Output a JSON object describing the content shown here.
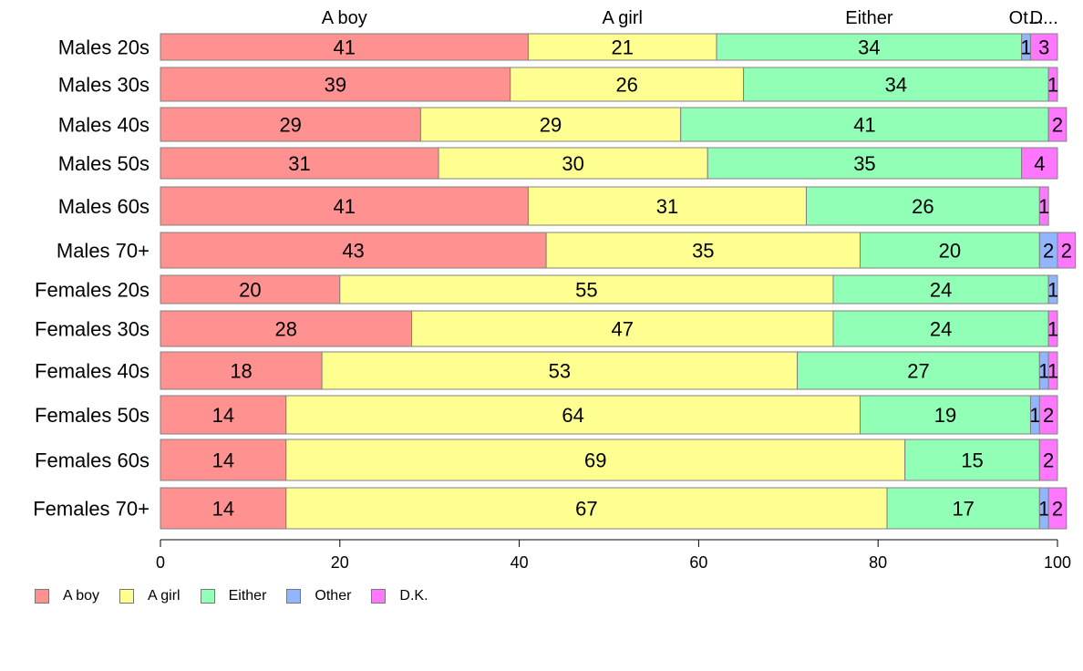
{
  "chart_data": {
    "type": "bar",
    "orientation": "horizontal",
    "stacked": true,
    "categories": [
      "Males 20s",
      "Males 30s",
      "Males 40s",
      "Males 50s",
      "Males 60s",
      "Males 70+",
      "Females 20s",
      "Females 30s",
      "Females 40s",
      "Females 50s",
      "Females 60s",
      "Females 70+"
    ],
    "series": [
      {
        "name": "A boy",
        "color": "#ff9191",
        "values": [
          41,
          39,
          29,
          31,
          41,
          43,
          20,
          28,
          18,
          14,
          14,
          14
        ]
      },
      {
        "name": "A girl",
        "color": "#ffff91",
        "values": [
          21,
          26,
          29,
          30,
          31,
          35,
          55,
          47,
          53,
          64,
          69,
          67
        ]
      },
      {
        "name": "Either",
        "color": "#91ffb6",
        "values": [
          34,
          34,
          41,
          35,
          26,
          20,
          24,
          24,
          27,
          19,
          15,
          17
        ]
      },
      {
        "name": "Other",
        "color": "#91b6ff",
        "values": [
          1,
          0,
          0,
          0,
          0,
          2,
          1,
          0,
          1,
          1,
          0,
          1
        ]
      },
      {
        "name": "D.K.",
        "color": "#ff77ff",
        "values": [
          3,
          1,
          2,
          4,
          1,
          2,
          0,
          1,
          1,
          2,
          2,
          2
        ]
      }
    ],
    "top_labels": [
      "A boy",
      "A girl",
      "Either",
      "Ot...",
      "D..."
    ],
    "x_ticks": [
      "0",
      "20",
      "40",
      "60",
      "80",
      "100"
    ],
    "xlim": [
      0,
      100
    ],
    "grid": false,
    "legend_position": "bottom-left"
  }
}
